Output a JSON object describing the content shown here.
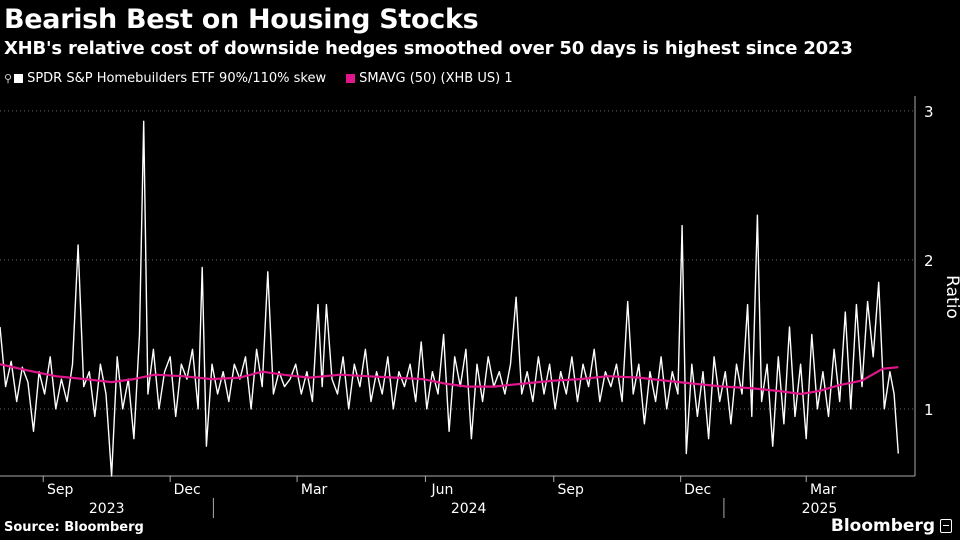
{
  "header": {
    "title": "Bearish Best on Housing Stocks",
    "subtitle": "XHB's relative cost of downside hedges smoothed over 50 days is highest since 2023"
  },
  "footer": {
    "source": "Source: Bloomberg",
    "brand": "Bloomberg"
  },
  "colors": {
    "background": "#000000",
    "series_1": "#ffffff",
    "series_2": "#e0168a",
    "grid": "#666666"
  },
  "chart_data": {
    "type": "line",
    "title": "Bearish Best on Housing Stocks",
    "xlabel": "",
    "ylabel": "Ratio",
    "ylim": [
      0.55,
      3.1
    ],
    "yticks": [
      1,
      2,
      3
    ],
    "grid": true,
    "legend_position": "top-left",
    "x_range": [
      "2023-08-01",
      "2025-05-18"
    ],
    "month_ticks": [
      {
        "label": "Sep",
        "date": "2023-09-01"
      },
      {
        "label": "Dec",
        "date": "2023-12-01"
      },
      {
        "label": "Mar",
        "date": "2024-03-01"
      },
      {
        "label": "Jun",
        "date": "2024-06-01"
      },
      {
        "label": "Sep",
        "date": "2024-09-01"
      },
      {
        "label": "Dec",
        "date": "2024-12-01"
      },
      {
        "label": "Mar",
        "date": "2025-03-01"
      }
    ],
    "year_labels": [
      {
        "label": "2023",
        "from": "2023-08-01",
        "to": "2024-01-01"
      },
      {
        "label": "2024",
        "from": "2024-01-01",
        "to": "2025-01-01"
      },
      {
        "label": "2025",
        "from": "2025-01-01",
        "to": "2025-05-18"
      }
    ],
    "series": [
      {
        "name": "SPDR S&P Homebuilders ETF 90%/110% skew",
        "color": "#ffffff",
        "points": [
          [
            "2023-08-01",
            1.55
          ],
          [
            "2023-08-05",
            1.15
          ],
          [
            "2023-08-09",
            1.32
          ],
          [
            "2023-08-13",
            1.05
          ],
          [
            "2023-08-17",
            1.28
          ],
          [
            "2023-08-21",
            1.18
          ],
          [
            "2023-08-25",
            0.85
          ],
          [
            "2023-08-29",
            1.25
          ],
          [
            "2023-09-02",
            1.1
          ],
          [
            "2023-09-06",
            1.35
          ],
          [
            "2023-09-10",
            1.0
          ],
          [
            "2023-09-14",
            1.2
          ],
          [
            "2023-09-18",
            1.05
          ],
          [
            "2023-09-22",
            1.3
          ],
          [
            "2023-09-26",
            2.1
          ],
          [
            "2023-09-30",
            1.15
          ],
          [
            "2023-10-04",
            1.25
          ],
          [
            "2023-10-08",
            0.95
          ],
          [
            "2023-10-12",
            1.3
          ],
          [
            "2023-10-16",
            1.1
          ],
          [
            "2023-10-20",
            0.55
          ],
          [
            "2023-10-24",
            1.35
          ],
          [
            "2023-10-28",
            1.0
          ],
          [
            "2023-11-01",
            1.2
          ],
          [
            "2023-11-05",
            0.8
          ],
          [
            "2023-11-09",
            1.5
          ],
          [
            "2023-11-12",
            2.93
          ],
          [
            "2023-11-15",
            1.1
          ],
          [
            "2023-11-19",
            1.4
          ],
          [
            "2023-11-23",
            1.0
          ],
          [
            "2023-11-27",
            1.25
          ],
          [
            "2023-12-01",
            1.35
          ],
          [
            "2023-12-05",
            0.95
          ],
          [
            "2023-12-09",
            1.3
          ],
          [
            "2023-12-13",
            1.2
          ],
          [
            "2023-12-17",
            1.4
          ],
          [
            "2023-12-21",
            1.0
          ],
          [
            "2023-12-24",
            1.95
          ],
          [
            "2023-12-27",
            0.75
          ],
          [
            "2023-12-31",
            1.3
          ],
          [
            "2024-01-04",
            1.1
          ],
          [
            "2024-01-08",
            1.25
          ],
          [
            "2024-01-12",
            1.05
          ],
          [
            "2024-01-16",
            1.3
          ],
          [
            "2024-01-20",
            1.2
          ],
          [
            "2024-01-24",
            1.35
          ],
          [
            "2024-01-28",
            1.0
          ],
          [
            "2024-02-01",
            1.4
          ],
          [
            "2024-02-05",
            1.15
          ],
          [
            "2024-02-09",
            1.92
          ],
          [
            "2024-02-13",
            1.1
          ],
          [
            "2024-02-17",
            1.25
          ],
          [
            "2024-02-21",
            1.15
          ],
          [
            "2024-02-25",
            1.2
          ],
          [
            "2024-02-29",
            1.3
          ],
          [
            "2024-03-04",
            1.1
          ],
          [
            "2024-03-08",
            1.25
          ],
          [
            "2024-03-12",
            1.05
          ],
          [
            "2024-03-16",
            1.7
          ],
          [
            "2024-03-19",
            1.15
          ],
          [
            "2024-03-22",
            1.7
          ],
          [
            "2024-03-26",
            1.2
          ],
          [
            "2024-03-30",
            1.1
          ],
          [
            "2024-04-03",
            1.35
          ],
          [
            "2024-04-07",
            1.0
          ],
          [
            "2024-04-11",
            1.3
          ],
          [
            "2024-04-15",
            1.15
          ],
          [
            "2024-04-19",
            1.4
          ],
          [
            "2024-04-23",
            1.05
          ],
          [
            "2024-04-27",
            1.25
          ],
          [
            "2024-05-01",
            1.1
          ],
          [
            "2024-05-05",
            1.35
          ],
          [
            "2024-05-09",
            1.0
          ],
          [
            "2024-05-13",
            1.25
          ],
          [
            "2024-05-17",
            1.15
          ],
          [
            "2024-05-21",
            1.3
          ],
          [
            "2024-05-25",
            1.05
          ],
          [
            "2024-05-29",
            1.45
          ],
          [
            "2024-06-02",
            1.0
          ],
          [
            "2024-06-06",
            1.25
          ],
          [
            "2024-06-10",
            1.1
          ],
          [
            "2024-06-14",
            1.5
          ],
          [
            "2024-06-18",
            0.85
          ],
          [
            "2024-06-22",
            1.35
          ],
          [
            "2024-06-26",
            1.15
          ],
          [
            "2024-06-30",
            1.4
          ],
          [
            "2024-07-04",
            0.8
          ],
          [
            "2024-07-08",
            1.3
          ],
          [
            "2024-07-12",
            1.05
          ],
          [
            "2024-07-16",
            1.35
          ],
          [
            "2024-07-20",
            1.15
          ],
          [
            "2024-07-24",
            1.25
          ],
          [
            "2024-07-28",
            1.1
          ],
          [
            "2024-08-01",
            1.3
          ],
          [
            "2024-08-05",
            1.75
          ],
          [
            "2024-08-09",
            1.1
          ],
          [
            "2024-08-13",
            1.25
          ],
          [
            "2024-08-17",
            1.05
          ],
          [
            "2024-08-21",
            1.35
          ],
          [
            "2024-08-25",
            1.1
          ],
          [
            "2024-08-29",
            1.3
          ],
          [
            "2024-09-02",
            1.0
          ],
          [
            "2024-09-06",
            1.25
          ],
          [
            "2024-09-10",
            1.1
          ],
          [
            "2024-09-14",
            1.35
          ],
          [
            "2024-09-18",
            1.05
          ],
          [
            "2024-09-22",
            1.3
          ],
          [
            "2024-09-26",
            1.15
          ],
          [
            "2024-09-30",
            1.4
          ],
          [
            "2024-10-04",
            1.05
          ],
          [
            "2024-10-08",
            1.25
          ],
          [
            "2024-10-12",
            1.15
          ],
          [
            "2024-10-16",
            1.3
          ],
          [
            "2024-10-20",
            1.05
          ],
          [
            "2024-10-24",
            1.72
          ],
          [
            "2024-10-28",
            1.1
          ],
          [
            "2024-11-01",
            1.3
          ],
          [
            "2024-11-05",
            0.9
          ],
          [
            "2024-11-09",
            1.25
          ],
          [
            "2024-11-13",
            1.05
          ],
          [
            "2024-11-17",
            1.35
          ],
          [
            "2024-11-21",
            1.0
          ],
          [
            "2024-11-25",
            1.25
          ],
          [
            "2024-11-29",
            1.1
          ],
          [
            "2024-12-02",
            2.23
          ],
          [
            "2024-12-05",
            0.7
          ],
          [
            "2024-12-09",
            1.3
          ],
          [
            "2024-12-13",
            0.95
          ],
          [
            "2024-12-17",
            1.25
          ],
          [
            "2024-12-21",
            0.8
          ],
          [
            "2024-12-25",
            1.35
          ],
          [
            "2024-12-29",
            1.05
          ],
          [
            "2025-01-02",
            1.25
          ],
          [
            "2025-01-06",
            0.9
          ],
          [
            "2025-01-10",
            1.3
          ],
          [
            "2025-01-14",
            1.1
          ],
          [
            "2025-01-18",
            1.7
          ],
          [
            "2025-01-21",
            0.95
          ],
          [
            "2025-01-25",
            2.3
          ],
          [
            "2025-01-28",
            1.05
          ],
          [
            "2025-02-01",
            1.3
          ],
          [
            "2025-02-05",
            0.75
          ],
          [
            "2025-02-09",
            1.35
          ],
          [
            "2025-02-13",
            0.9
          ],
          [
            "2025-02-17",
            1.55
          ],
          [
            "2025-02-21",
            0.95
          ],
          [
            "2025-02-25",
            1.3
          ],
          [
            "2025-03-01",
            0.8
          ],
          [
            "2025-03-05",
            1.5
          ],
          [
            "2025-03-09",
            1.0
          ],
          [
            "2025-03-13",
            1.25
          ],
          [
            "2025-03-17",
            0.95
          ],
          [
            "2025-03-21",
            1.4
          ],
          [
            "2025-03-25",
            1.05
          ],
          [
            "2025-03-29",
            1.65
          ],
          [
            "2025-04-02",
            1.0
          ],
          [
            "2025-04-06",
            1.7
          ],
          [
            "2025-04-10",
            1.15
          ],
          [
            "2025-04-14",
            1.72
          ],
          [
            "2025-04-18",
            1.35
          ],
          [
            "2025-04-22",
            1.85
          ],
          [
            "2025-04-26",
            1.0
          ],
          [
            "2025-04-30",
            1.25
          ],
          [
            "2025-05-03",
            1.1
          ],
          [
            "2025-05-06",
            0.7
          ]
        ]
      },
      {
        "name": "SMAVG (50) (XHB US) 1",
        "color": "#e0168a",
        "points": [
          [
            "2023-08-01",
            1.3
          ],
          [
            "2023-08-20",
            1.26
          ],
          [
            "2023-09-10",
            1.22
          ],
          [
            "2023-10-01",
            1.2
          ],
          [
            "2023-10-20",
            1.18
          ],
          [
            "2023-11-05",
            1.2
          ],
          [
            "2023-11-20",
            1.23
          ],
          [
            "2023-12-10",
            1.22
          ],
          [
            "2023-12-31",
            1.2
          ],
          [
            "2024-01-20",
            1.21
          ],
          [
            "2024-02-05",
            1.25
          ],
          [
            "2024-02-20",
            1.23
          ],
          [
            "2024-03-10",
            1.21
          ],
          [
            "2024-04-01",
            1.23
          ],
          [
            "2024-04-20",
            1.22
          ],
          [
            "2024-05-10",
            1.21
          ],
          [
            "2024-05-30",
            1.2
          ],
          [
            "2024-06-15",
            1.17
          ],
          [
            "2024-07-01",
            1.15
          ],
          [
            "2024-07-20",
            1.15
          ],
          [
            "2024-08-10",
            1.17
          ],
          [
            "2024-09-01",
            1.19
          ],
          [
            "2024-09-20",
            1.2
          ],
          [
            "2024-10-10",
            1.22
          ],
          [
            "2024-11-01",
            1.21
          ],
          [
            "2024-11-20",
            1.19
          ],
          [
            "2024-12-10",
            1.17
          ],
          [
            "2025-01-01",
            1.15
          ],
          [
            "2025-01-20",
            1.14
          ],
          [
            "2025-02-10",
            1.12
          ],
          [
            "2025-02-25",
            1.1
          ],
          [
            "2025-03-10",
            1.12
          ],
          [
            "2025-03-25",
            1.16
          ],
          [
            "2025-04-10",
            1.19
          ],
          [
            "2025-04-25",
            1.27
          ],
          [
            "2025-05-06",
            1.28
          ]
        ]
      }
    ]
  }
}
